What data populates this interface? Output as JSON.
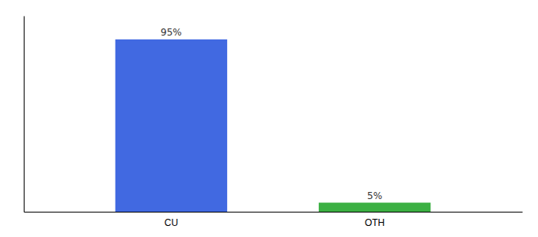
{
  "chart_data": {
    "type": "bar",
    "categories": [
      "CU",
      "OTH"
    ],
    "values": [
      95,
      5
    ],
    "value_labels": [
      "95%",
      "5%"
    ],
    "colors": [
      "#4169e1",
      "#3cb043"
    ],
    "ylim": [
      0,
      108
    ],
    "data_labels": true,
    "tick_labels": "x"
  }
}
